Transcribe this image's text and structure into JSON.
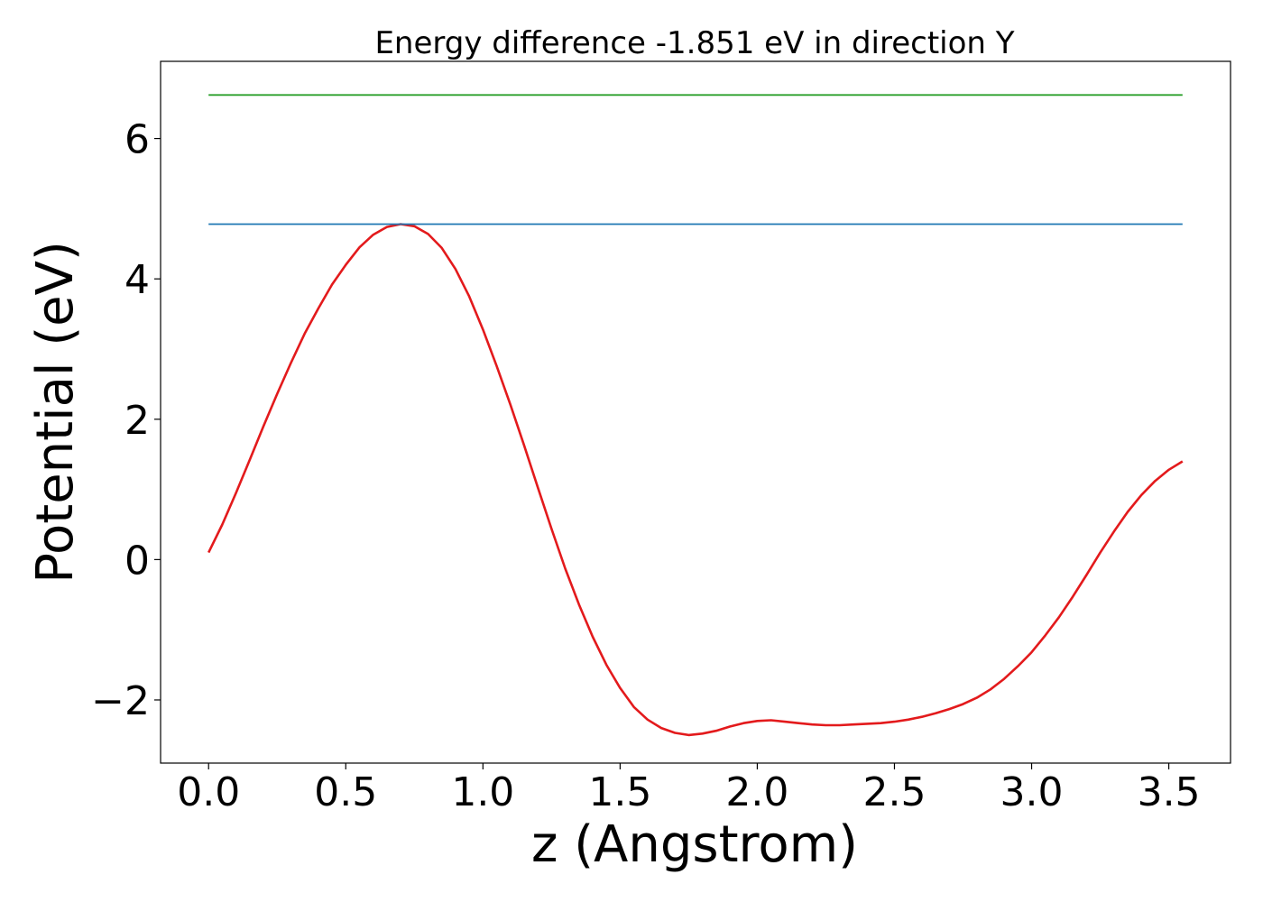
{
  "chart_data": {
    "type": "line",
    "title": "Energy difference -1.851 eV in direction Y",
    "xlabel": "z (Angstrom)",
    "ylabel": "Potential (eV)",
    "xlim": [
      -0.175,
      3.725
    ],
    "ylim": [
      -2.9,
      7.1
    ],
    "xticks": [
      0.0,
      0.5,
      1.0,
      1.5,
      2.0,
      2.5,
      3.0,
      3.5
    ],
    "xtick_labels": [
      "0.0",
      "0.5",
      "1.0",
      "1.5",
      "2.0",
      "2.5",
      "3.0",
      "3.5"
    ],
    "yticks": [
      -2,
      0,
      2,
      4,
      6
    ],
    "ytick_labels": [
      "−2",
      "0",
      "2",
      "4",
      "6"
    ],
    "grid": false,
    "colors": {
      "potential": "#e31a1c",
      "level_blue": "#1f77b4",
      "level_green": "#2ca02c"
    },
    "series": [
      {
        "color": "#e31a1c",
        "x": [
          0.0,
          0.05,
          0.1,
          0.15,
          0.2,
          0.25,
          0.3,
          0.35,
          0.4,
          0.45,
          0.5,
          0.55,
          0.6,
          0.65,
          0.7,
          0.75,
          0.8,
          0.85,
          0.9,
          0.95,
          1.0,
          1.05,
          1.1,
          1.15,
          1.2,
          1.25,
          1.3,
          1.35,
          1.4,
          1.45,
          1.5,
          1.55,
          1.6,
          1.65,
          1.7,
          1.75,
          1.8,
          1.85,
          1.9,
          1.95,
          2.0,
          2.05,
          2.1,
          2.15,
          2.2,
          2.25,
          2.3,
          2.35,
          2.4,
          2.45,
          2.5,
          2.55,
          2.6,
          2.65,
          2.7,
          2.75,
          2.8,
          2.85,
          2.9,
          2.95,
          3.0,
          3.05,
          3.1,
          3.15,
          3.2,
          3.25,
          3.3,
          3.35,
          3.4,
          3.45,
          3.5,
          3.55
        ],
        "y": [
          0.1,
          0.5,
          0.95,
          1.42,
          1.9,
          2.36,
          2.8,
          3.22,
          3.58,
          3.92,
          4.2,
          4.45,
          4.63,
          4.74,
          4.78,
          4.75,
          4.64,
          4.44,
          4.14,
          3.75,
          3.28,
          2.76,
          2.21,
          1.63,
          1.03,
          0.44,
          -0.13,
          -0.64,
          -1.1,
          -1.5,
          -1.83,
          -2.1,
          -2.28,
          -2.4,
          -2.47,
          -2.5,
          -2.48,
          -2.44,
          -2.38,
          -2.33,
          -2.3,
          -2.29,
          -2.31,
          -2.33,
          -2.35,
          -2.36,
          -2.36,
          -2.35,
          -2.34,
          -2.33,
          -2.31,
          -2.28,
          -2.24,
          -2.19,
          -2.13,
          -2.06,
          -1.97,
          -1.85,
          -1.7,
          -1.52,
          -1.32,
          -1.08,
          -0.82,
          -0.53,
          -0.22,
          0.1,
          0.4,
          0.68,
          0.92,
          1.12,
          1.28,
          1.4
        ]
      },
      {
        "color": "#1f77b4",
        "x": [
          0.0,
          3.55
        ],
        "y": [
          4.78,
          4.78
        ]
      },
      {
        "color": "#2ca02c",
        "x": [
          0.0,
          3.55
        ],
        "y": [
          6.62,
          6.62
        ]
      }
    ]
  }
}
